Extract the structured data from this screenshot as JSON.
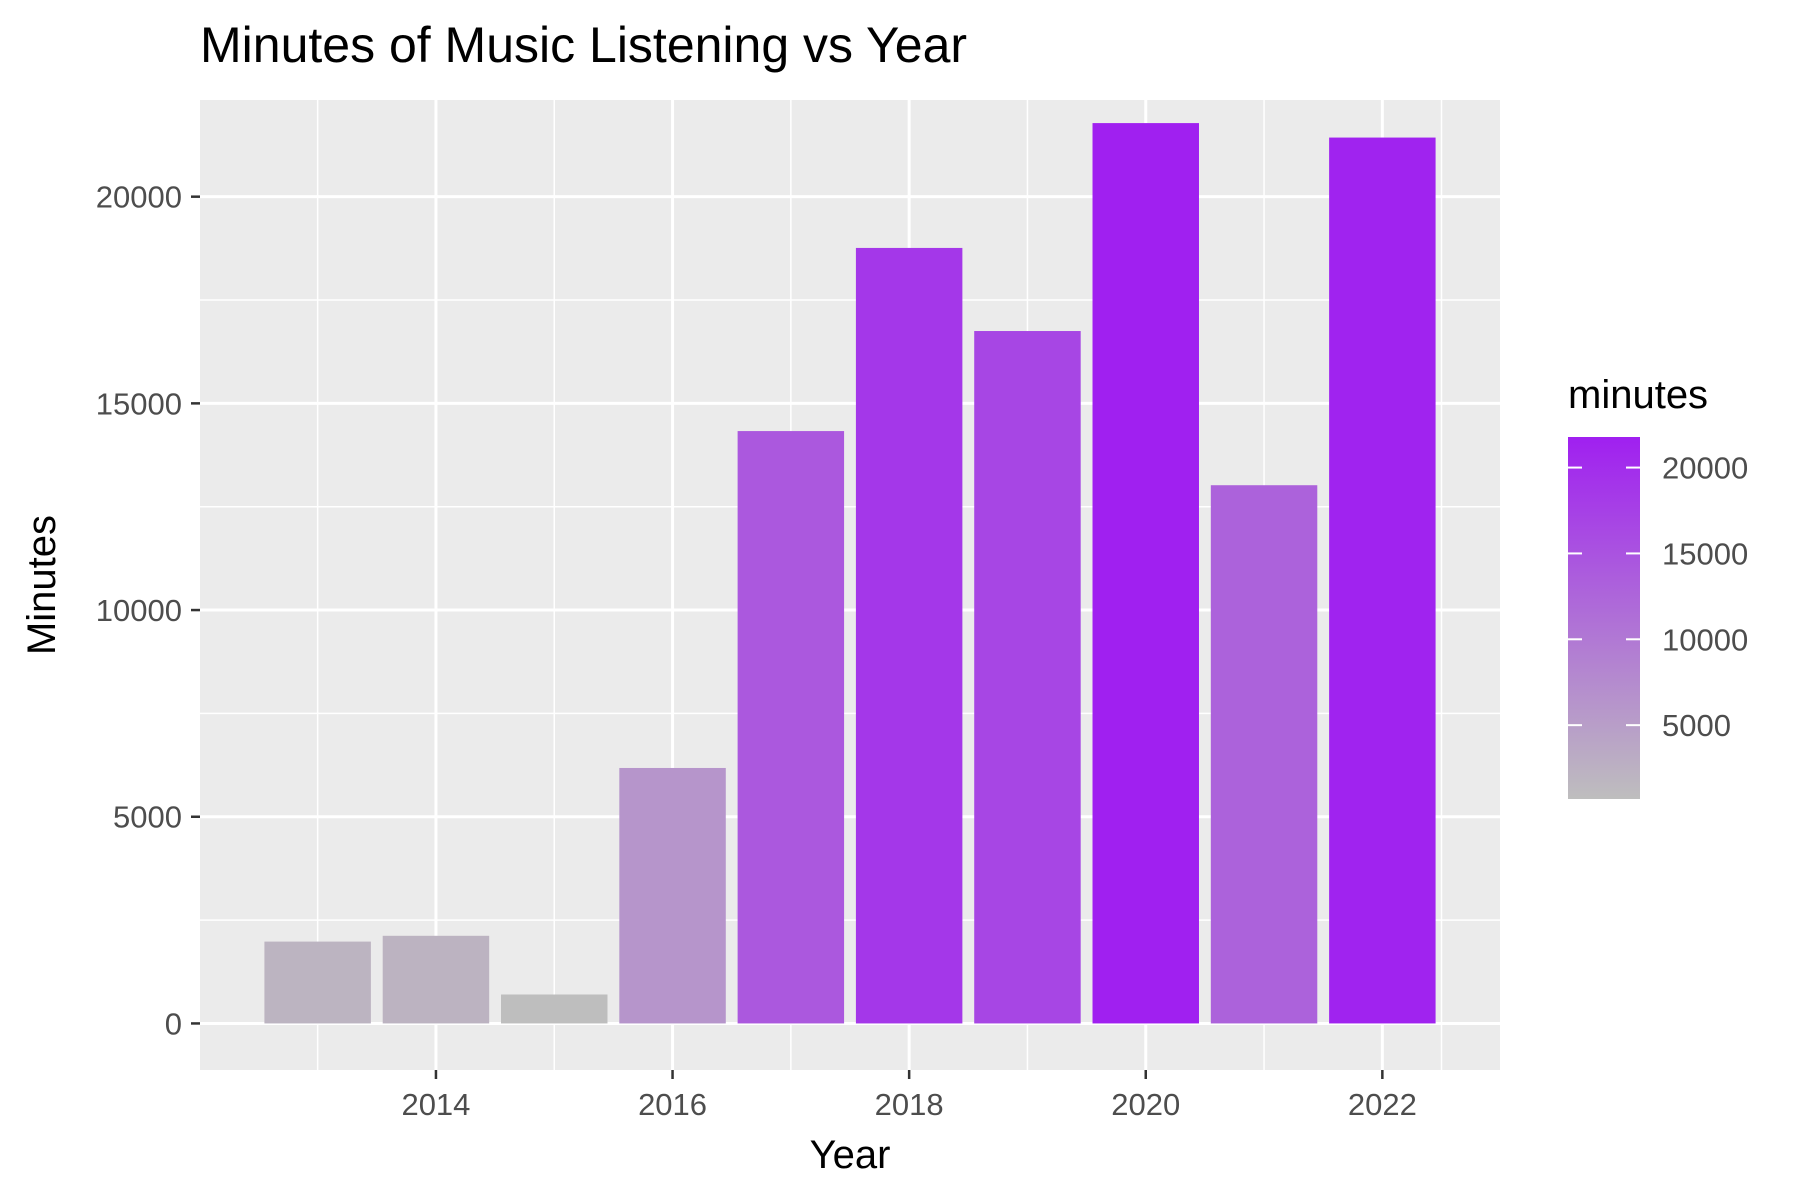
{
  "chart_data": {
    "type": "bar",
    "title": "Minutes of Music Listening vs Year",
    "xlabel": "Year",
    "ylabel": "Minutes",
    "x": [
      2013,
      2014,
      2015,
      2016,
      2017,
      2018,
      2019,
      2020,
      2021,
      2022
    ],
    "values": [
      1980,
      2120,
      700,
      6180,
      14330,
      18760,
      16750,
      21780,
      13020,
      21430
    ],
    "xlim": [
      2012.5,
      2022.5
    ],
    "ylim": [
      0,
      22000
    ],
    "x_ticks": [
      "2014",
      "2016",
      "2018",
      "2020",
      "2022"
    ],
    "y_ticks": [
      "0",
      "5000",
      "10000",
      "15000",
      "20000"
    ],
    "grid": true,
    "legend": {
      "title": "minutes",
      "placement": "right",
      "ticks": [
        "5000",
        "10000",
        "15000",
        "20000"
      ],
      "color_low": "#bebebe",
      "color_high": "#a020f0"
    },
    "colors": {
      "panel_background": "#ebebeb",
      "grid": "#ffffff",
      "axis_text": "#4d4d4d",
      "title_text": "#000000"
    }
  }
}
